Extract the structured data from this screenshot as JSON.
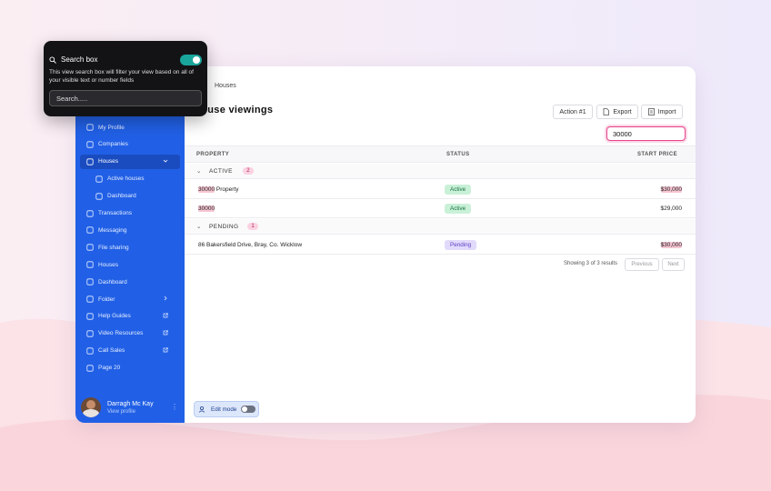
{
  "popup": {
    "title": "Search box",
    "description": "This view search box will filter your view based on all of your visible text or number fields",
    "placeholder": "Search....."
  },
  "breadcrumb": "Houses",
  "page_title": "House viewings",
  "buttons": [
    "Action #1",
    "Export",
    "Import"
  ],
  "search_value": "30000",
  "sidebar": {
    "items": [
      {
        "label": "My Profile"
      },
      {
        "label": "Companies"
      },
      {
        "label": "Houses",
        "active": true,
        "trailing": "down"
      },
      {
        "label": "Active houses",
        "sub": true
      },
      {
        "label": "Dashboard",
        "sub": true
      },
      {
        "label": "Transactions"
      },
      {
        "label": "Messaging"
      },
      {
        "label": "File sharing"
      },
      {
        "label": "Houses"
      },
      {
        "label": "Dashboard"
      },
      {
        "label": "Folder",
        "trailing": "right"
      },
      {
        "label": "Help Guides",
        "trailing": "external"
      },
      {
        "label": "Video Resources",
        "trailing": "external"
      },
      {
        "label": "Call Sales",
        "trailing": "external"
      },
      {
        "label": "Page 20"
      }
    ],
    "user": {
      "name": "Darragh Mc Kay",
      "link": "View profile"
    }
  },
  "table": {
    "columns": [
      "PROPERTY",
      "STATUS",
      "START PRICE"
    ],
    "groups": [
      {
        "name": "ACTIVE",
        "count": 2,
        "rows": [
          {
            "property": [
              {
                "text": "30000",
                "match": true
              },
              {
                "text": " Property"
              }
            ],
            "status": {
              "text": "Active",
              "tone": "green"
            },
            "price": {
              "text": "$30,000",
              "match": true
            }
          },
          {
            "property": [
              {
                "text": "30000",
                "match": true
              }
            ],
            "status": {
              "text": "Active",
              "tone": "green"
            },
            "price": {
              "text": "$29,000"
            }
          }
        ]
      },
      {
        "name": "PENDING",
        "count": 1,
        "rows": [
          {
            "property": [
              {
                "text": "86 Bakersfield Drive, Bray, Co. Wicklow"
              }
            ],
            "status": {
              "text": "Pending",
              "tone": "purple"
            },
            "price": {
              "text": "$30,000",
              "match": true
            }
          }
        ]
      }
    ]
  },
  "pagination": {
    "summary": "Showing 3 of 3 results",
    "previous": "Previous",
    "next": "Next"
  },
  "edit_mode": "Edit mode"
}
